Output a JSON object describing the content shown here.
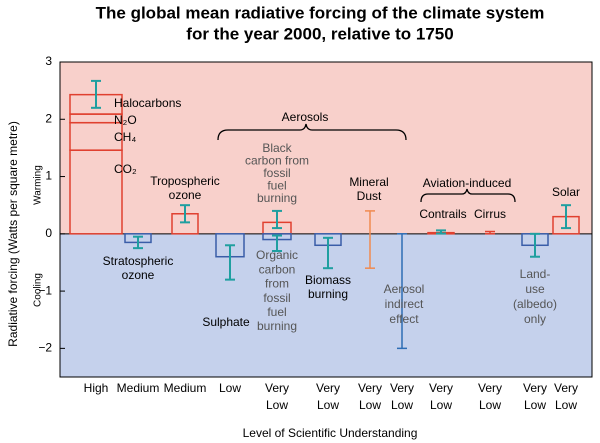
{
  "chart_data": {
    "type": "forcing",
    "title": [
      "The global mean radiative forcing of the climate system",
      "for the year 2000, relative to 1750"
    ],
    "y_label": "Radiative forcing  (Watts per square metre)",
    "warming_label": "Warming",
    "cooling_label": "Cooling",
    "x_label": "Level  of Scientific Understanding",
    "ylim": [
      -2.5,
      3
    ],
    "yticks": [
      3,
      2,
      1,
      0,
      {
        "value": -1,
        "label": "−1"
      },
      {
        "value": -2,
        "label": "−2"
      }
    ],
    "warming_color": "#f8d0cb",
    "cooling_color": "#c5d1ec",
    "error_color": "#1f9fa0",
    "categories": [
      [
        "High"
      ],
      [
        "Medium"
      ],
      [
        "Medium"
      ],
      [
        "Low"
      ],
      [
        "Very",
        "Low"
      ],
      [
        "Very",
        "Low"
      ],
      [
        "Very",
        "Low"
      ],
      [
        "Very",
        "Low"
      ],
      [
        "Very",
        "Low"
      ],
      [
        "Very",
        "Low"
      ],
      [
        "Very",
        "Low"
      ],
      [
        "Very",
        "Low"
      ]
    ],
    "groups": [
      {
        "label": "Aerosols"
      },
      {
        "label": "Aviation-induced"
      }
    ],
    "items": [
      {
        "segments": [
          {
            "name": "CO₂",
            "value": 1.46
          },
          {
            "name": "CH₄",
            "value": 0.48
          },
          {
            "name": "N₂O",
            "value": 0.15
          },
          {
            "name": "Halocarbons",
            "value": 0.34
          }
        ],
        "range": [
          2.2,
          2.67
        ],
        "color": "#e0402f"
      },
      {
        "label": [
          "Stratospheric",
          "ozone"
        ],
        "value": -0.15,
        "range": [
          -0.25,
          -0.05
        ],
        "color": "#3a5da8"
      },
      {
        "label": [
          "Tropospheric",
          "ozone"
        ],
        "value": 0.35,
        "range": [
          0.2,
          0.5
        ],
        "color": "#e0402f"
      },
      {
        "label": [
          "Sulphate"
        ],
        "value": -0.4,
        "range": [
          -0.8,
          -0.2
        ],
        "color": "#3a5da8"
      },
      {
        "label": [
          "Black",
          "carbon from",
          "fossil",
          "fuel",
          "burning"
        ],
        "value": 0.2,
        "range": [
          0.1,
          0.4
        ],
        "color": "#e0402f",
        "label_color": "#555555"
      },
      {
        "label": [
          "Organic",
          "carbon",
          "from",
          "fossil",
          "fuel",
          "burning"
        ],
        "value": -0.1,
        "range": [
          -0.3,
          -0.03
        ],
        "color": "#3a5da8",
        "label_color": "#555555"
      },
      {
        "label": [
          "Biomass",
          "burning"
        ],
        "value": -0.2,
        "range": [
          -0.6,
          -0.07
        ],
        "color": "#3a5da8"
      },
      {
        "label": [
          "Mineral",
          "Dust"
        ],
        "value": null,
        "range": [
          -0.6,
          0.4
        ],
        "color": "#f08a50"
      },
      {
        "label": [
          "Aerosol",
          "indirect",
          "effect"
        ],
        "value": null,
        "range": [
          -2,
          0
        ],
        "color": "#2d6db5",
        "label_color": "#555555"
      },
      {
        "label": [
          "Contrails"
        ],
        "value": 0.02,
        "range": [
          0.005,
          0.06
        ],
        "color": "#e0402f"
      },
      {
        "label": [
          "Cirrus"
        ],
        "value": null,
        "range": [
          0,
          0.04
        ],
        "color": "#e0402f"
      },
      {
        "label": [
          "Land-",
          "use",
          "(albedo)",
          "only"
        ],
        "value": -0.2,
        "range": [
          -0.4,
          0
        ],
        "color": "#3a5da8",
        "label_color": "#555555"
      },
      {
        "label": [
          "Solar"
        ],
        "value": 0.3,
        "range": [
          0.1,
          0.5
        ],
        "color": "#e0402f"
      }
    ]
  }
}
